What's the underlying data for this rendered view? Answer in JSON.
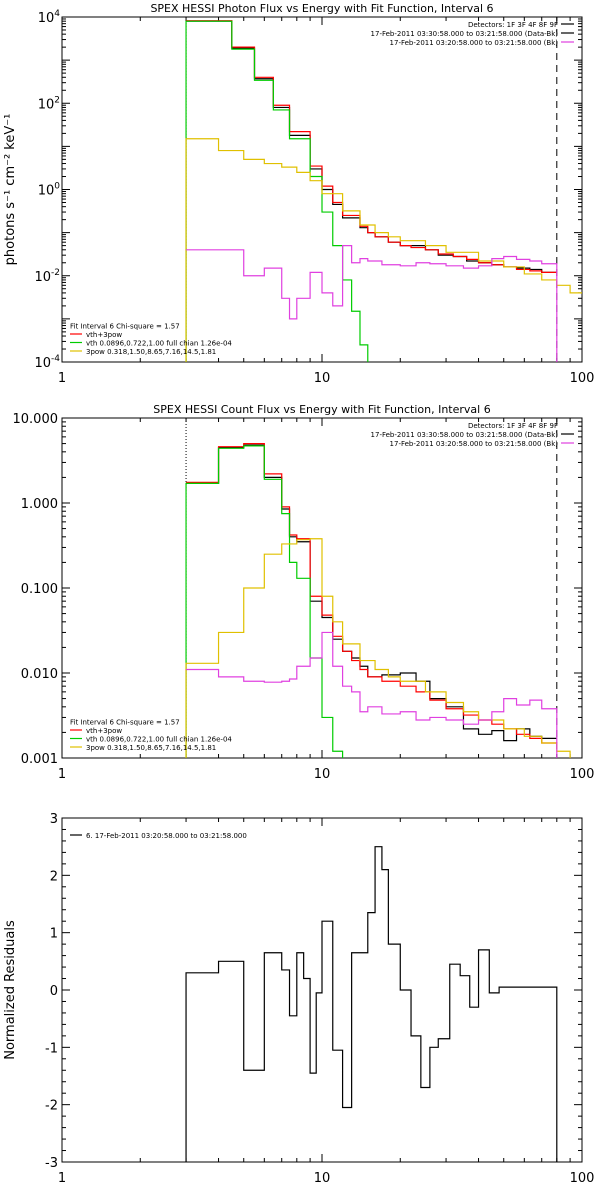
{
  "chart_data": [
    {
      "type": "line",
      "title": "SPEX HESSI Photon Flux vs Energy with Fit Function, Interval 6",
      "ylabel": "photons s⁻¹ cm⁻² keV⁻¹",
      "xlabel": "",
      "xscale": "log",
      "yscale": "log",
      "xlim": [
        1,
        100
      ],
      "ylim": [
        0.0001,
        10000
      ],
      "xticks": [
        {
          "v": 1,
          "label": "1"
        },
        {
          "v": 10,
          "label": "10"
        },
        {
          "v": 100,
          "label": "100"
        }
      ],
      "yticks": [
        {
          "v": 0.0001,
          "label": "10",
          "exp": "-4"
        },
        {
          "v": 0.01,
          "label": "10",
          "exp": "-2"
        },
        {
          "v": 1,
          "label": "10",
          "exp": "0"
        },
        {
          "v": 100,
          "label": "10",
          "exp": "2"
        },
        {
          "v": 10000,
          "label": "10",
          "exp": "4"
        }
      ],
      "yminor": true,
      "info_right": [
        "Detectors: 1F 3F 4F 8F 9F",
        "17-Feb-2011 03:30:58.000 to 03:21:58.000 (Data-Bk)",
        "17-Feb-2011 03:20:58.000 to 03:21:58.000 (Bk)"
      ],
      "info_colors": [
        "#000000",
        "#000000",
        "#e040e0"
      ],
      "info_lines": [
        true,
        true,
        true
      ],
      "fit_lines": [
        "Fit Interval 6   Chi-square = 1.57",
        "vth+3pow",
        "vth 0.0896,0.722,1.00  full chian 1.26e-04",
        "3pow 0.318,1.50,8.65,7.16,14.5,1.81"
      ],
      "fit_colors": [
        "#000000",
        "#ff0000",
        "#00cc00",
        "#e0c000"
      ],
      "fit_lines_show": [
        false,
        true,
        true,
        true
      ],
      "vlines": [
        {
          "x": 3,
          "color": "#000000",
          "dash": "1,2"
        },
        {
          "x": 80,
          "color": "#000000",
          "dash": "7,5"
        }
      ],
      "series": [
        {
          "name": "Data-Bk",
          "color": "#000000",
          "edges": [
            3.0,
            3.5,
            4.0,
            4.5,
            5.0,
            5.5,
            6.0,
            6.5,
            7.0,
            7.5,
            8.0,
            9.0,
            10.0,
            11.0,
            12.0,
            13.0,
            14.0,
            15.0,
            16.0,
            18.0,
            20.0,
            22.0,
            25.0,
            28.0,
            32.0,
            36.0,
            40.0,
            45.0,
            50.0,
            56.0,
            63.0,
            70.0,
            80.0
          ],
          "values": [
            8000,
            8000,
            8000,
            1900,
            1900,
            370,
            370,
            80,
            80,
            18,
            18,
            3.0,
            1.0,
            0.45,
            0.22,
            0.22,
            0.13,
            0.1,
            0.08,
            0.06,
            0.05,
            0.05,
            0.04,
            0.03,
            0.028,
            0.022,
            0.02,
            0.018,
            0.016,
            0.015,
            0.014,
            0.012
          ],
          "end": 0.012
        },
        {
          "name": "vth+3pow",
          "color": "#ff0000",
          "edges": [
            3.0,
            3.5,
            4.0,
            4.5,
            5.0,
            5.5,
            6.0,
            6.5,
            7.0,
            7.5,
            8.0,
            9.0,
            10.0,
            11.0,
            12.0,
            13.0,
            14.0,
            15.0,
            16.0,
            18.0,
            20.0,
            22.0,
            25.0,
            28.0,
            32.0,
            36.0,
            40.0,
            45.0,
            50.0,
            56.0,
            63.0,
            70.0,
            80.0
          ],
          "values": [
            8200,
            8200,
            8200,
            2000,
            2000,
            400,
            400,
            90,
            90,
            22,
            22,
            3.5,
            1.2,
            0.5,
            0.25,
            0.25,
            0.14,
            0.1,
            0.08,
            0.06,
            0.05,
            0.045,
            0.04,
            0.032,
            0.028,
            0.024,
            0.02,
            0.018,
            0.016,
            0.014,
            0.013,
            0.012
          ]
        },
        {
          "name": "vth",
          "color": "#00cc00",
          "edges": [
            3.0,
            3.5,
            4.0,
            4.5,
            5.0,
            5.5,
            6.0,
            6.5,
            7.0,
            7.5,
            8.0,
            9.0,
            10.0,
            11.0,
            12.0,
            13.0,
            14.0,
            15.0
          ],
          "values": [
            8000,
            8000,
            8000,
            1800,
            1800,
            340,
            340,
            70,
            70,
            15,
            15,
            2.0,
            0.3,
            0.05,
            0.008,
            0.0015,
            0.00025
          ],
          "start": 0.0001,
          "end": 0.0001
        },
        {
          "name": "3pow",
          "color": "#e0c000",
          "edges": [
            3.0,
            4.0,
            5.0,
            6.0,
            7.0,
            8.0,
            9.0,
            10.0,
            12.0,
            14.0,
            16.0,
            18.0,
            20.0,
            25.0,
            30.0,
            40.0,
            50.0,
            60.0,
            70.0,
            80.0,
            90.0,
            100.0
          ],
          "values": [
            15,
            8,
            5,
            4,
            3.3,
            2.5,
            1.6,
            0.8,
            0.32,
            0.15,
            0.1,
            0.08,
            0.065,
            0.05,
            0.035,
            0.022,
            0.016,
            0.011,
            0.008,
            0.006,
            0.004
          ],
          "start": 0.0001
        },
        {
          "name": "Bk",
          "color": "#e040e0",
          "edges": [
            3.0,
            4.0,
            5.0,
            6.0,
            7.0,
            7.5,
            8.0,
            9.0,
            10.0,
            11.0,
            12.0,
            13.0,
            14.0,
            15.0,
            17.0,
            20.0,
            23.0,
            26.0,
            30.0,
            35.0,
            40.0,
            45.0,
            50.0,
            56.0,
            63.0,
            70.0,
            80.0
          ],
          "values": [
            0.04,
            0.04,
            0.01,
            0.015,
            0.003,
            0.001,
            0.003,
            0.012,
            0.004,
            0.002,
            0.05,
            0.02,
            0.025,
            0.022,
            0.018,
            0.017,
            0.02,
            0.019,
            0.017,
            0.015,
            0.017,
            0.025,
            0.028,
            0.024,
            0.022,
            0.019
          ],
          "end": 0.0001
        }
      ]
    },
    {
      "type": "line",
      "title": "SPEX HESSI Count Flux vs Energy with Fit Function, Interval 6",
      "ylabel": "",
      "xlabel": "",
      "xscale": "log",
      "yscale": "log",
      "xlim": [
        1,
        100
      ],
      "ylim": [
        0.001,
        10
      ],
      "xticks": [
        {
          "v": 1,
          "label": "1"
        },
        {
          "v": 10,
          "label": "10"
        },
        {
          "v": 100,
          "label": "100"
        }
      ],
      "yticks": [
        {
          "v": 0.001,
          "label": "0.001"
        },
        {
          "v": 0.01,
          "label": "0.010"
        },
        {
          "v": 0.1,
          "label": "0.100"
        },
        {
          "v": 1,
          "label": "1.000"
        },
        {
          "v": 10,
          "label": "10.000"
        }
      ],
      "yminor": true,
      "info_right": [
        "Detectors: 1F 3F 4F 8F 9F",
        "17-Feb-2011 03:30:58.000 to 03:21:58.000 (Data-Bk)",
        "17-Feb-2011 03:20:58.000 to 03:21:58.000 (Bk)"
      ],
      "info_colors": [
        "#000000",
        "#000000",
        "#e040e0"
      ],
      "info_lines": [
        false,
        true,
        true
      ],
      "fit_lines": [
        "Fit Interval 6   Chi-square = 1.57",
        "vth+3pow",
        "vth 0.0896,0.722,1.00  full chian 1.26e-04",
        "3pow 0.318,1.50,8.65,7.16,14.5,1.81"
      ],
      "fit_colors": [
        "#000000",
        "#ff0000",
        "#00cc00",
        "#e0c000"
      ],
      "fit_lines_show": [
        false,
        true,
        true,
        true
      ],
      "vlines": [
        {
          "x": 3,
          "color": "#000000",
          "dash": "1,2"
        },
        {
          "x": 80,
          "color": "#000000",
          "dash": "7,5"
        }
      ],
      "series": [
        {
          "name": "Data-Bk",
          "color": "#000000",
          "edges": [
            3.0,
            4.0,
            5.0,
            6.0,
            7.0,
            7.5,
            8.0,
            9.0,
            10.0,
            11.0,
            12.0,
            13.0,
            14.0,
            15.0,
            17.0,
            20.0,
            23.0,
            26.0,
            30.0,
            35.0,
            40.0,
            45.0,
            50.0,
            56.0,
            63.0,
            70.0,
            80.0
          ],
          "values": [
            1.7,
            4.5,
            4.8,
            2.0,
            0.85,
            0.4,
            0.35,
            0.07,
            0.045,
            0.025,
            0.018,
            0.015,
            0.012,
            0.009,
            0.0095,
            0.01,
            0.008,
            0.005,
            0.004,
            0.0022,
            0.0019,
            0.0021,
            0.0016,
            0.0022,
            0.0018,
            0.0017
          ]
        },
        {
          "name": "vth+3pow",
          "color": "#ff0000",
          "edges": [
            3.0,
            4.0,
            5.0,
            6.0,
            7.0,
            7.5,
            8.0,
            9.0,
            10.0,
            11.0,
            12.0,
            13.0,
            14.0,
            15.0,
            17.0,
            20.0,
            23.0,
            26.0,
            30.0,
            35.0,
            40.0,
            45.0,
            50.0,
            56.0,
            63.0,
            70.0,
            80.0
          ],
          "values": [
            1.75,
            4.6,
            5.0,
            2.2,
            0.9,
            0.42,
            0.38,
            0.08,
            0.048,
            0.027,
            0.018,
            0.014,
            0.011,
            0.009,
            0.008,
            0.007,
            0.006,
            0.0048,
            0.0038,
            0.0032,
            0.0028,
            0.0025,
            0.0022,
            0.0019,
            0.0017,
            0.0015
          ]
        },
        {
          "name": "vth",
          "color": "#00cc00",
          "edges": [
            3.0,
            4.0,
            5.0,
            6.0,
            7.0,
            7.5,
            8.0,
            9.0,
            10.0,
            11.0,
            12.0
          ],
          "values": [
            1.7,
            4.4,
            4.7,
            1.9,
            0.75,
            0.2,
            0.13,
            0.015,
            0.003,
            0.0012
          ],
          "start": 0.001,
          "end": 0.001
        },
        {
          "name": "3pow",
          "color": "#e0c000",
          "edges": [
            3.0,
            4.0,
            5.0,
            6.0,
            7.0,
            8.0,
            9.0,
            10.0,
            11.0,
            12.0,
            14.0,
            16.0,
            18.0,
            20.0,
            25.0,
            30.0,
            35.0,
            40.0,
            50.0,
            60.0,
            70.0,
            80.0,
            90.0
          ],
          "values": [
            0.013,
            0.03,
            0.1,
            0.25,
            0.33,
            0.37,
            0.38,
            0.08,
            0.04,
            0.022,
            0.014,
            0.011,
            0.009,
            0.008,
            0.006,
            0.0045,
            0.0035,
            0.0028,
            0.0022,
            0.0018,
            0.0015,
            0.0012
          ],
          "start": 0.001,
          "end": 0.001
        },
        {
          "name": "Bk",
          "color": "#e040e0",
          "edges": [
            3.0,
            4.0,
            5.0,
            6.0,
            7.0,
            7.5,
            8.0,
            9.0,
            10.0,
            11.0,
            12.0,
            13.0,
            14.0,
            15.0,
            17.0,
            20.0,
            23.0,
            26.0,
            30.0,
            35.0,
            40.0,
            45.0,
            50.0,
            56.0,
            63.0,
            70.0,
            80.0
          ],
          "values": [
            0.011,
            0.009,
            0.008,
            0.0078,
            0.008,
            0.0085,
            0.012,
            0.015,
            0.03,
            0.012,
            0.007,
            0.006,
            0.0035,
            0.004,
            0.0033,
            0.0035,
            0.0028,
            0.003,
            0.0028,
            0.0025,
            0.0028,
            0.0035,
            0.005,
            0.0042,
            0.0048,
            0.0038
          ],
          "end": 0.001
        }
      ]
    },
    {
      "type": "line",
      "title": "",
      "ylabel": "Normalized Residuals",
      "xlabel": "",
      "xscale": "log",
      "yscale": "linear",
      "xlim": [
        1,
        100
      ],
      "ylim": [
        -3,
        3
      ],
      "xticks": [
        {
          "v": 1,
          "label": "1"
        },
        {
          "v": 10,
          "label": "10"
        },
        {
          "v": 100,
          "label": "100"
        }
      ],
      "yticks": [
        {
          "v": -3,
          "label": "-3"
        },
        {
          "v": -2,
          "label": "-2"
        },
        {
          "v": -1,
          "label": "-1"
        },
        {
          "v": 0,
          "label": "0"
        },
        {
          "v": 1,
          "label": "1"
        },
        {
          "v": 2,
          "label": "2"
        },
        {
          "v": 3,
          "label": "3"
        }
      ],
      "yminor": false,
      "legend_left": "6. 17-Feb-2011 03:20:58.000 to 03:21:58.000",
      "vlines": [],
      "series": [
        {
          "name": "",
          "color": "#000000",
          "edges": [
            3.0,
            3.5,
            4.0,
            4.5,
            5.0,
            5.5,
            6.0,
            6.5,
            7.0,
            7.5,
            8.0,
            8.5,
            9.0,
            9.5,
            10.0,
            11.0,
            12.0,
            13.0,
            14.0,
            15.0,
            16.0,
            17.0,
            18.0,
            20.0,
            22.0,
            24.0,
            26.0,
            28.0,
            31.0,
            34.0,
            37.0,
            40.0,
            44.0,
            48.0,
            52.0,
            57.0,
            62.0,
            67.0,
            73.0,
            80.0
          ],
          "values": [
            0.3,
            0.3,
            0.5,
            0.5,
            -1.4,
            -1.4,
            0.65,
            0.65,
            0.35,
            -0.45,
            0.65,
            0.2,
            -1.45,
            -0.05,
            1.2,
            -1.05,
            -2.05,
            0.65,
            0.65,
            1.35,
            2.5,
            2.1,
            0.8,
            0.0,
            -0.8,
            -1.7,
            -1.0,
            -0.85,
            0.45,
            0.25,
            -0.3,
            0.7,
            -0.05,
            0.05,
            0.05,
            0.05,
            0.05,
            0.05,
            0.05
          ],
          "start": -3,
          "end": -3
        }
      ]
    }
  ]
}
